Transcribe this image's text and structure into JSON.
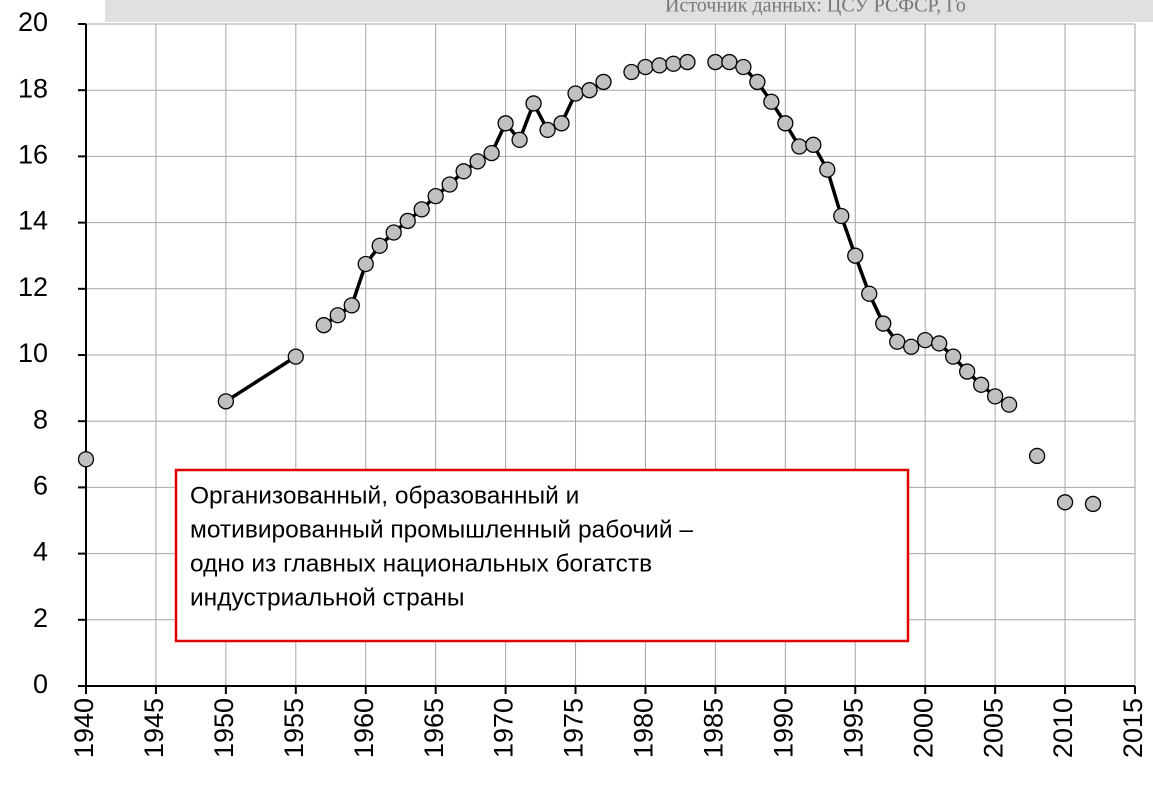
{
  "chart_data": {
    "type": "line",
    "source": "Источник данных: ЦСУ РСФСР, Го",
    "annotation": [
      "Организованный, образованный и",
      "мотивированный промышленный рабочий –",
      "одно из главных национальных богатств",
      "индустриальной страны"
    ],
    "x": [
      1940,
      1945,
      1950,
      1955,
      1956,
      1957,
      1958,
      1959,
      1960,
      1961,
      1962,
      1963,
      1964,
      1965,
      1966,
      1967,
      1968,
      1969,
      1970,
      1971,
      1972,
      1973,
      1974,
      1975,
      1976,
      1977,
      1978,
      1979,
      1980,
      1981,
      1982,
      1983,
      1984,
      1985,
      1986,
      1987,
      1988,
      1989,
      1990,
      1991,
      1992,
      1993,
      1994,
      1995,
      1996,
      1997,
      1998,
      1999,
      2000,
      2001,
      2002,
      2003,
      2004,
      2005,
      2006,
      2007,
      2008,
      2009,
      2010,
      2011,
      2012
    ],
    "series": [
      {
        "color": "#000000",
        "marker_color": "#c0c0c0",
        "values": [
          6.85,
          null,
          8.6,
          9.95,
          null,
          10.9,
          11.2,
          11.5,
          12.75,
          13.3,
          13.7,
          14.05,
          14.4,
          14.8,
          15.15,
          15.55,
          15.85,
          16.1,
          17.0,
          16.5,
          17.6,
          16.8,
          17.0,
          17.9,
          18.0,
          18.25,
          null,
          18.55,
          18.7,
          18.75,
          18.8,
          18.85,
          null,
          18.85,
          18.85,
          18.7,
          18.25,
          17.65,
          17.0,
          16.3,
          16.35,
          15.6,
          14.2,
          13.0,
          11.85,
          10.95,
          10.4,
          10.25,
          10.45,
          10.35,
          9.95,
          9.5,
          9.1,
          8.75,
          8.5,
          null,
          6.95,
          null,
          5.55,
          null,
          5.5
        ]
      }
    ],
    "xlim": [
      1940,
      2015
    ],
    "xticks": [
      1940,
      1945,
      1950,
      1955,
      1960,
      1965,
      1970,
      1975,
      1980,
      1985,
      1990,
      1995,
      2000,
      2005,
      2010,
      2015
    ],
    "ylim": [
      0,
      20
    ],
    "yticks": [
      0,
      2,
      4,
      6,
      8,
      10,
      12,
      14,
      16,
      18,
      20
    ],
    "grid": true
  }
}
